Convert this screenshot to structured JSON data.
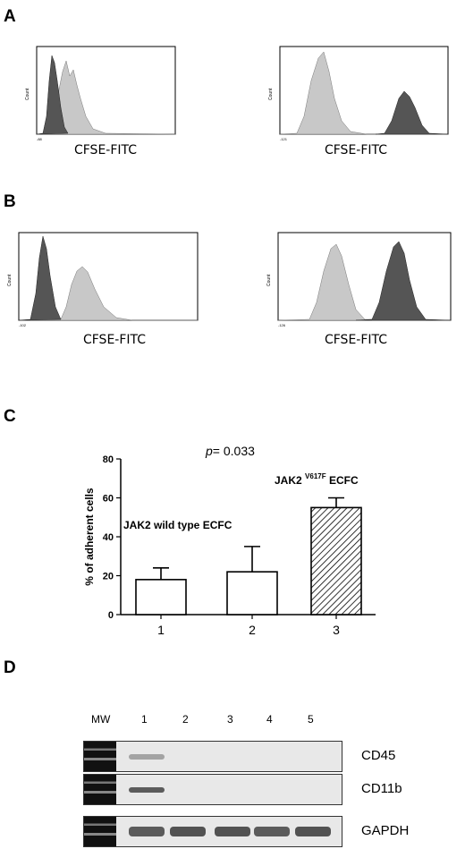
{
  "panels": {
    "A": {
      "label": "A",
      "left": {
        "x_label": "CFSE-FITC",
        "y_label": "Count",
        "x_min": "-88"
      },
      "right": {
        "x_label": "CFSE-FITC",
        "y_label": "Count",
        "x_min": "-121"
      }
    },
    "B": {
      "label": "B",
      "left": {
        "x_label": "CFSE-FITC",
        "y_label": "Count",
        "x_min": "-102"
      },
      "right": {
        "x_label": "CFSE-FITC",
        "y_label": "Count",
        "x_min": "-126"
      }
    },
    "C": {
      "label": "C"
    },
    "D": {
      "label": "D"
    }
  },
  "chart_data": {
    "type": "bar",
    "categories": [
      "1",
      "2",
      "3"
    ],
    "values": [
      18,
      22,
      55
    ],
    "errors": [
      6,
      13,
      5
    ],
    "ylabel": "% of adherent cells",
    "ylim": [
      0,
      80
    ],
    "yticks": [
      "0",
      "20",
      "40",
      "60",
      "80"
    ],
    "annotations": {
      "p_prefix": "p",
      "p_value": "= 0.033",
      "wild_type": "JAK2 wild type ECFC",
      "mutant_main": "JAK2",
      "mutant_sup": "V617F",
      "mutant_tail": "ECFC"
    },
    "bar_fills": [
      "white",
      "white",
      "hatched"
    ]
  },
  "gel": {
    "lanes": [
      "MW",
      "1",
      "2",
      "3",
      "4",
      "5"
    ],
    "rows": [
      {
        "gene": "CD45",
        "bands": [
          1,
          0.5,
          0,
          0,
          0,
          0
        ]
      },
      {
        "gene": "CD11b",
        "bands": [
          1,
          0.9,
          0,
          0,
          0,
          0
        ]
      },
      {
        "gene": "GAPDH",
        "bands": [
          1,
          0.9,
          0.95,
          0.95,
          0.9,
          0.95
        ]
      }
    ]
  }
}
